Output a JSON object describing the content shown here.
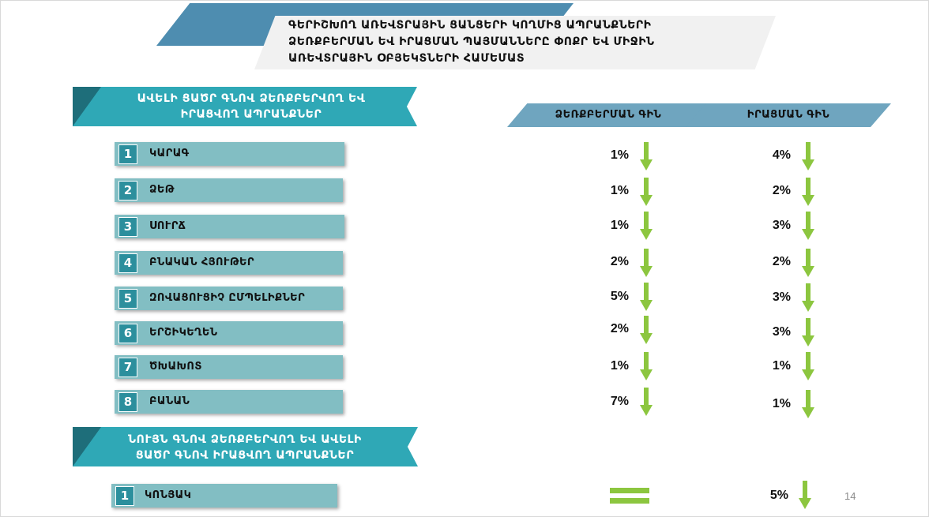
{
  "title": {
    "line1": "ԳԵՐԻՇԽՈՂ ԱՌԵՎՏՐԱՅԻՆ ՑԱՆՑԵՐԻ ԿՈՂՄԻՑ ԱՊՐԱՆՔՆԵՐԻ",
    "line2": "ՁԵՌՔԲԵՐՄԱՆ ԵՎ ԻՐԱՑՄԱՆ ՊԱՅՄԱՆՆԵՐԸ ՓՈՔՐ ԵՎ ՄԻՋԻՆ",
    "line3": "ԱՌԵՎՏՐԱՅԻՆ ՕԲՅԵԿՏՆԵՐԻ ՀԱՄԵՄԱՏ"
  },
  "columns": {
    "purchase": "ՁԵՌՔԲԵՐՄԱՆ ԳԻՆ",
    "sale": "ԻՐԱՑՄԱՆ ԳԻՆ"
  },
  "section1": {
    "line1": "ԱՎԵԼԻ ՑԱԾՐ ԳՆՈՎ ՁԵՌՔԲԵՐՎՈՂ ԵՎ",
    "line2": "ԻՐԱՑՎՈՂ ԱՊՐԱՆՔՆԵՐ",
    "items": [
      {
        "num": "1",
        "label": "ԿԱՐԱԳ",
        "purchase": "1%",
        "sale": "4%"
      },
      {
        "num": "2",
        "label": "ՁԵԹ",
        "purchase": "1%",
        "sale": "2%"
      },
      {
        "num": "3",
        "label": "ՍՈՒՐՃ",
        "purchase": "1%",
        "sale": "3%"
      },
      {
        "num": "4",
        "label": "ԲՆԱԿԱՆ ՀՅՈՒԹԵՐ",
        "purchase": "2%",
        "sale": "2%"
      },
      {
        "num": "5",
        "label": "ԶՈՎԱՑՈՒՑԻՉ ԸՄՊԵԼԻՔՆԵՐ",
        "purchase": "5%",
        "sale": "3%"
      },
      {
        "num": "6",
        "label": "ԵՐՇԻԿԵՂԵՆ",
        "purchase": "2%",
        "sale": "3%"
      },
      {
        "num": "7",
        "label": "ԾԽԱԽՈՏ",
        "purchase": "1%",
        "sale": "1%"
      },
      {
        "num": "8",
        "label": "ԲԱՆԱՆ",
        "purchase": "7%",
        "sale": "1%"
      }
    ]
  },
  "section2": {
    "line1": "ՆՈՒՅՆ ԳՆՈՎ ՁԵՌՔԲԵՐՎՈՂ ԵՎ ԱՎԵԼԻ",
    "line2": "ՑԱԾՐ ԳՆՈՎ ԻՐԱՑՎՈՂ ԱՊՐԱՆՔՆԵՐ",
    "items": [
      {
        "num": "1",
        "label": "ԿՈՆՅԱԿ",
        "sale": "5%"
      }
    ]
  },
  "page_number": "14",
  "colors": {
    "accent_teal": "#2fa8b6",
    "item_bg": "#82bec3",
    "arrow_green": "#8cc63f",
    "column_header": "#6fa5bf"
  },
  "icons": {
    "decrease": "down-arrow-icon",
    "unchanged": "equal-sign-icon"
  }
}
